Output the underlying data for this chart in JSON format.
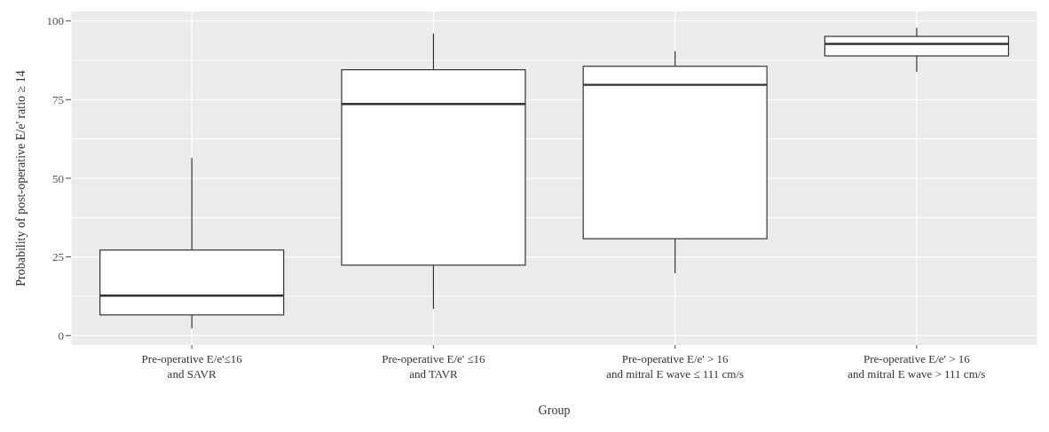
{
  "chart_data": {
    "type": "box",
    "xlabel": "Group",
    "ylabel": "Probability of post-operative E/e' ratio ≥ 14",
    "categories": [
      "Pre-operative E/e'≤16\nand SAVR",
      "Pre-operative E/e' ≤16\nand TAVR",
      "Pre-operative E/e' > 16\nand mitral E wave ≤ 111 cm/s",
      "Pre-operative E/e' > 16\nand mitral E wave > 111 cm/s"
    ],
    "boxes": [
      {
        "low": 2.3,
        "q1": 6.6,
        "median": 12.7,
        "q3": 27.2,
        "high": 56.5
      },
      {
        "low": 8.5,
        "q1": 22.4,
        "median": 73.6,
        "q3": 84.5,
        "high": 96
      },
      {
        "low": 19.8,
        "q1": 30.8,
        "median": 79.7,
        "q3": 85.6,
        "high": 90.4
      },
      {
        "low": 83.8,
        "q1": 88.9,
        "median": 92.7,
        "q3": 95.1,
        "high": 97.8
      }
    ],
    "ylim": [
      -3,
      103
    ],
    "yticks": [
      0,
      25,
      50,
      75,
      100
    ],
    "grid": true
  }
}
